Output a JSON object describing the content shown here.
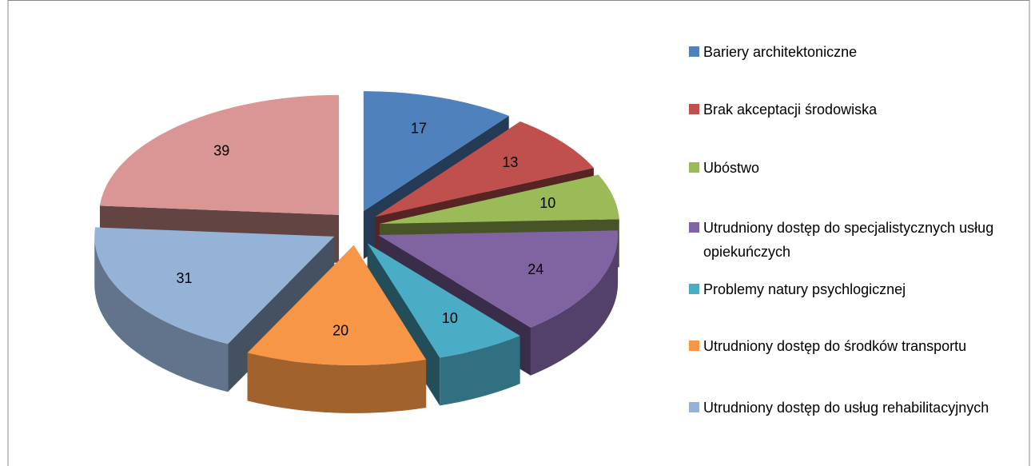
{
  "chart_data": {
    "type": "pie3d",
    "categories": [
      "Bariery architektoniczne",
      "Brak akceptacji środowiska",
      "Ubóstwo",
      "Utrudniony dostęp do specjalistycznych usług opiekuńczych",
      "Problemy natury psychlogicznej",
      "Utrudniony dostęp do środków transportu",
      "Utrudniony dostęp do usług rehabilitacyjnych",
      null
    ],
    "values": [
      17,
      13,
      10,
      24,
      10,
      20,
      31,
      39
    ],
    "colors": [
      "#4f81bd",
      "#c0504d",
      "#9bbb59",
      "#8064a2",
      "#4bacc6",
      "#f79646",
      "#95b3d7",
      "#d99694"
    ],
    "legend": "right"
  }
}
